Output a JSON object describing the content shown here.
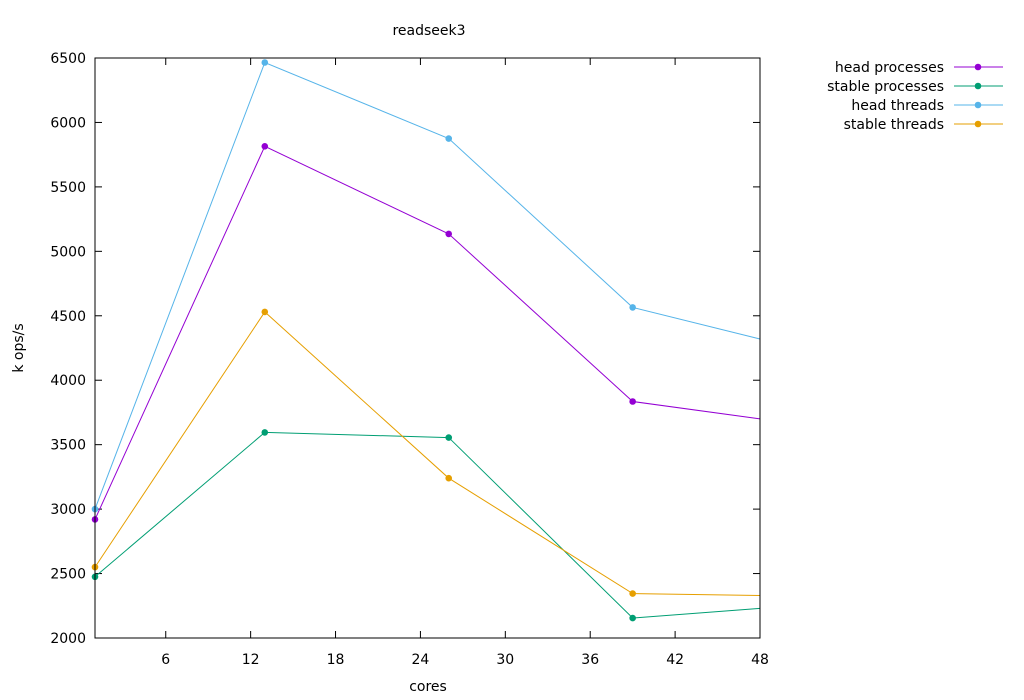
{
  "chart_data": {
    "type": "line",
    "title": "readseek3",
    "xlabel": "cores",
    "ylabel": "k ops/s",
    "xlim": [
      1,
      48
    ],
    "ylim": [
      2000,
      6500
    ],
    "xticks": [
      6,
      12,
      18,
      24,
      30,
      36,
      42,
      48
    ],
    "yticks": [
      2000,
      2500,
      3000,
      3500,
      4000,
      4500,
      5000,
      5500,
      6000,
      6500
    ],
    "grid": false,
    "legend_position": "top-right outside",
    "x": [
      1,
      13,
      26,
      39,
      48
    ],
    "series": [
      {
        "name": "head processes",
        "color": "#9400d3",
        "values": [
          2920,
          5815,
          5135,
          3835,
          3700
        ]
      },
      {
        "name": "stable processes",
        "color": "#009e73",
        "values": [
          2475,
          3595,
          3555,
          2155,
          2230
        ]
      },
      {
        "name": "head threads",
        "color": "#56b4e9",
        "values": [
          3000,
          6465,
          5875,
          4565,
          4320
        ]
      },
      {
        "name": "stable threads",
        "color": "#e69f00",
        "values": [
          2550,
          4530,
          3240,
          2345,
          2330
        ]
      }
    ]
  }
}
